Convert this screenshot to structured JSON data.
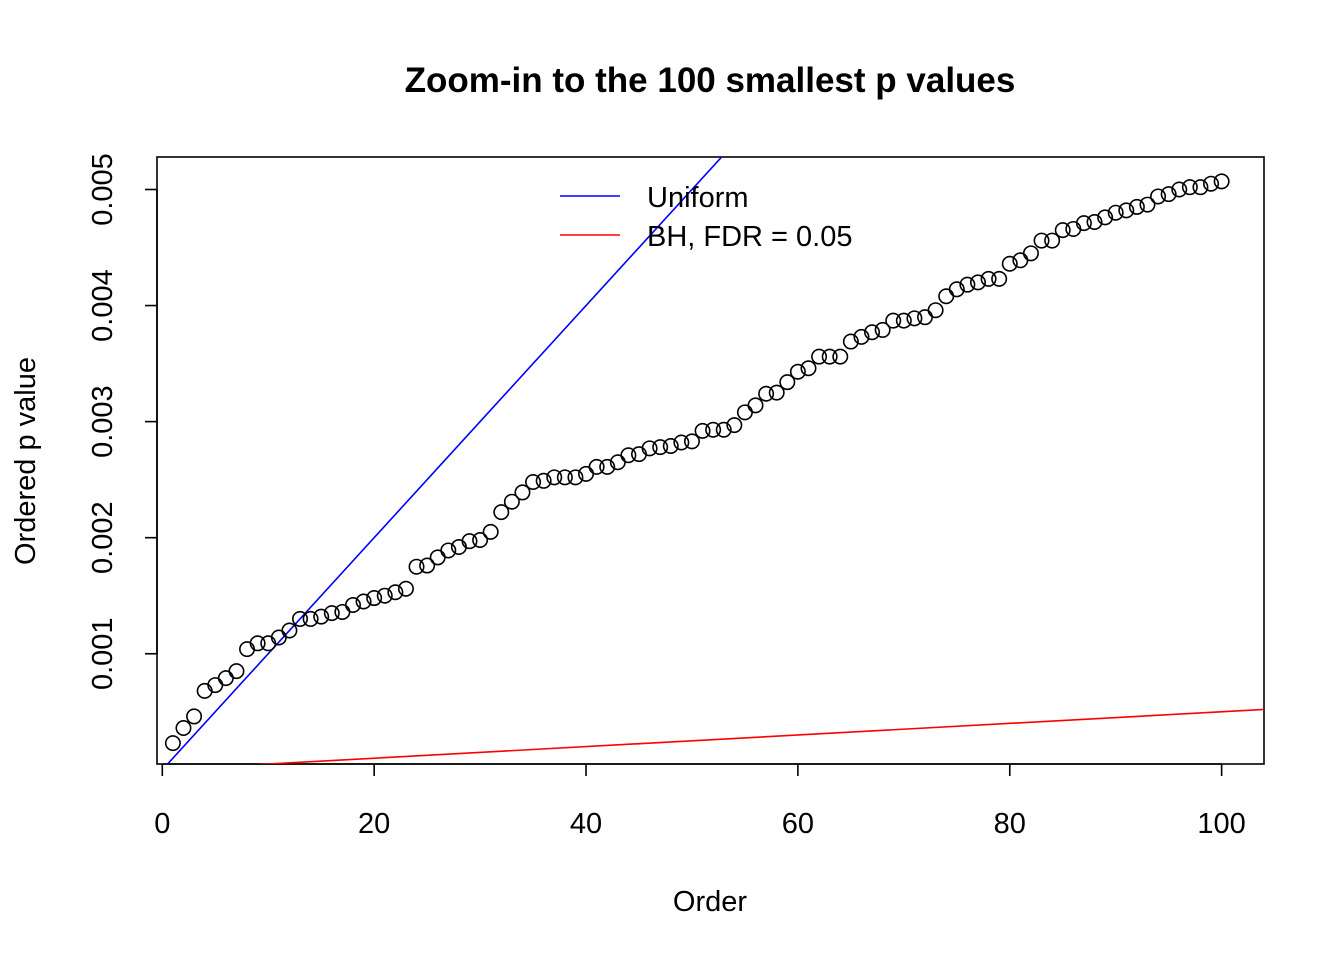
{
  "chart_data": {
    "type": "scatter",
    "title": "Zoom-in to the 100 smallest p values",
    "xlabel": "Order",
    "ylabel": "Ordered p value",
    "xlim": [
      -0.5,
      104
    ],
    "ylim": [
      5e-05,
      0.00528
    ],
    "x_ticks": [
      0,
      20,
      40,
      60,
      80,
      100
    ],
    "x_tick_labels": [
      "0",
      "20",
      "40",
      "60",
      "80",
      "100"
    ],
    "y_ticks": [
      0.001,
      0.002,
      0.003,
      0.004,
      0.005
    ],
    "y_tick_labels": [
      "0.001",
      "0.002",
      "0.003",
      "0.004",
      "0.005"
    ],
    "grid": false,
    "legend_position": "top-center",
    "series": [
      {
        "type": "points",
        "marker": "open-circle",
        "color": "#000000",
        "x": [
          1,
          2,
          3,
          4,
          5,
          6,
          7,
          8,
          9,
          10,
          11,
          12,
          13,
          14,
          15,
          16,
          17,
          18,
          19,
          20,
          21,
          22,
          23,
          24,
          25,
          26,
          27,
          28,
          29,
          30,
          31,
          32,
          33,
          34,
          35,
          36,
          37,
          38,
          39,
          40,
          41,
          42,
          43,
          44,
          45,
          46,
          47,
          48,
          49,
          50,
          51,
          52,
          53,
          54,
          55,
          56,
          57,
          58,
          59,
          60,
          61,
          62,
          63,
          64,
          65,
          66,
          67,
          68,
          69,
          70,
          71,
          72,
          73,
          74,
          75,
          76,
          77,
          78,
          79,
          80,
          81,
          82,
          83,
          84,
          85,
          86,
          87,
          88,
          89,
          90,
          91,
          92,
          93,
          94,
          95,
          96,
          97,
          98,
          99,
          100
        ],
        "y": [
          0.00023,
          0.00036,
          0.00046,
          0.00068,
          0.00073,
          0.00079,
          0.00085,
          0.00104,
          0.00109,
          0.00109,
          0.00114,
          0.0012,
          0.0013,
          0.0013,
          0.00132,
          0.00135,
          0.00136,
          0.00142,
          0.00145,
          0.00148,
          0.0015,
          0.00153,
          0.00156,
          0.00175,
          0.00176,
          0.00183,
          0.00189,
          0.00192,
          0.00197,
          0.00198,
          0.00205,
          0.00222,
          0.00231,
          0.00239,
          0.00248,
          0.00249,
          0.00252,
          0.00252,
          0.00252,
          0.00255,
          0.00261,
          0.00261,
          0.00265,
          0.00271,
          0.00272,
          0.00277,
          0.00278,
          0.00279,
          0.00282,
          0.00283,
          0.00292,
          0.00293,
          0.00293,
          0.00297,
          0.00308,
          0.00314,
          0.00324,
          0.00325,
          0.00334,
          0.00343,
          0.00346,
          0.00356,
          0.00356,
          0.00356,
          0.00369,
          0.00373,
          0.00377,
          0.00379,
          0.00387,
          0.00387,
          0.00389,
          0.0039,
          0.00396,
          0.00408,
          0.00414,
          0.00418,
          0.0042,
          0.00423,
          0.00423,
          0.00436,
          0.00439,
          0.00445,
          0.00456,
          0.00456,
          0.00465,
          0.00466,
          0.00471,
          0.00472,
          0.00476,
          0.0048,
          0.00482,
          0.00485,
          0.00487,
          0.00494,
          0.00496,
          0.005,
          0.00502,
          0.00502,
          0.00505,
          0.00507
        ]
      },
      {
        "type": "line",
        "name": "Uniform",
        "color": "#0000FF",
        "intercept": 0,
        "slope": 0.0001
      },
      {
        "type": "line",
        "name": "BH, FDR = 0.05",
        "color": "#FF0000",
        "intercept": 0,
        "slope": 5e-06
      }
    ]
  }
}
